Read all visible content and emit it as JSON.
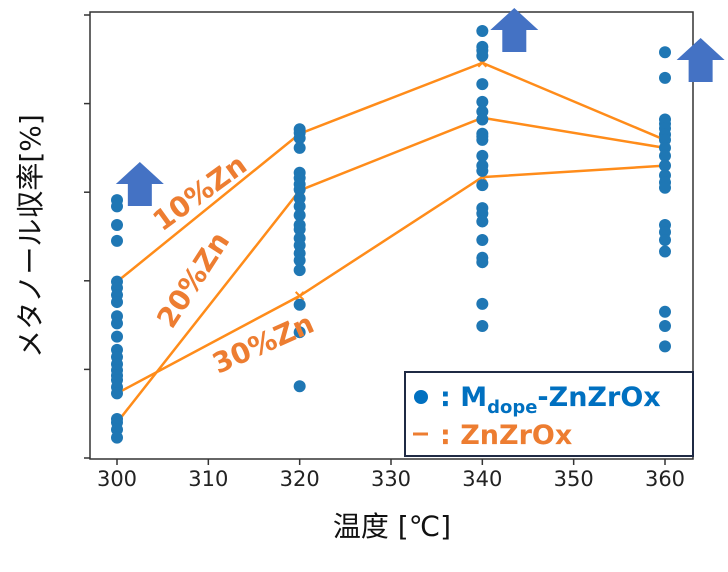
{
  "chart_data": {
    "type": "scatter",
    "xlabel": "温度 [℃]",
    "ylabel": "メタノール収率[%]",
    "xlim": [
      297,
      363
    ],
    "ylim": [
      0,
      5
    ],
    "xticks": [
      300,
      310,
      320,
      330,
      340,
      350,
      360
    ],
    "yticks_count": 6,
    "grid": false,
    "legend_position": "bottom-right",
    "scatter_series": {
      "name": "Mdope-ZnZrOx",
      "legend_label": ": M",
      "legend_sub": "dope",
      "legend_rest": "-ZnZrOx",
      "color": "#1F77B4",
      "points": [
        {
          "x": 300,
          "y": [
            2.91,
            2.84,
            2.63,
            2.45,
            1.99,
            1.92,
            1.84,
            1.76,
            1.6,
            1.52,
            1.37,
            1.22,
            1.14,
            1.06,
            0.99,
            0.93,
            0.88,
            0.8,
            0.73,
            0.44,
            0.4,
            0.32,
            0.23
          ]
        },
        {
          "x": 320,
          "y": [
            3.71,
            3.67,
            3.61,
            3.5,
            3.22,
            3.16,
            3.09,
            3.03,
            2.93,
            2.84,
            2.74,
            2.63,
            2.58,
            2.48,
            2.4,
            2.31,
            2.23,
            2.12,
            1.73,
            1.42,
            0.81
          ]
        },
        {
          "x": 340,
          "y": [
            4.82,
            4.64,
            4.6,
            4.54,
            4.22,
            4.02,
            3.91,
            3.82,
            3.66,
            3.63,
            3.59,
            3.41,
            3.3,
            3.24,
            3.08,
            2.82,
            2.76,
            2.67,
            2.46,
            2.26,
            2.21,
            1.74,
            1.49
          ]
        },
        {
          "x": 360,
          "y": [
            4.58,
            4.29,
            3.82,
            3.77,
            3.72,
            3.65,
            3.59,
            3.5,
            3.41,
            3.3,
            3.19,
            3.11,
            3.05,
            2.63,
            2.55,
            2.46,
            2.33,
            1.65,
            1.49,
            1.26
          ]
        }
      ]
    },
    "line_series": [
      {
        "name": "10%Zn",
        "x": [
          300,
          320,
          340,
          360
        ],
        "y": [
          1.99,
          3.66,
          4.46,
          3.59
        ]
      },
      {
        "name": "20%Zn",
        "x": [
          300,
          320,
          340,
          360
        ],
        "y": [
          0.4,
          3.02,
          3.84,
          3.5
        ]
      },
      {
        "name": "30%Zn",
        "x": [
          300,
          320,
          340,
          360
        ],
        "y": [
          0.73,
          1.83,
          3.17,
          3.3
        ]
      }
    ],
    "line_legend_label": ": ZnZrOx",
    "line_color": "#FF8C1A",
    "annotation_color": "#ED7D31",
    "arrow_color": "#4472C4",
    "arrow_positions_x": [
      302.5,
      343.5,
      363.9
    ]
  }
}
